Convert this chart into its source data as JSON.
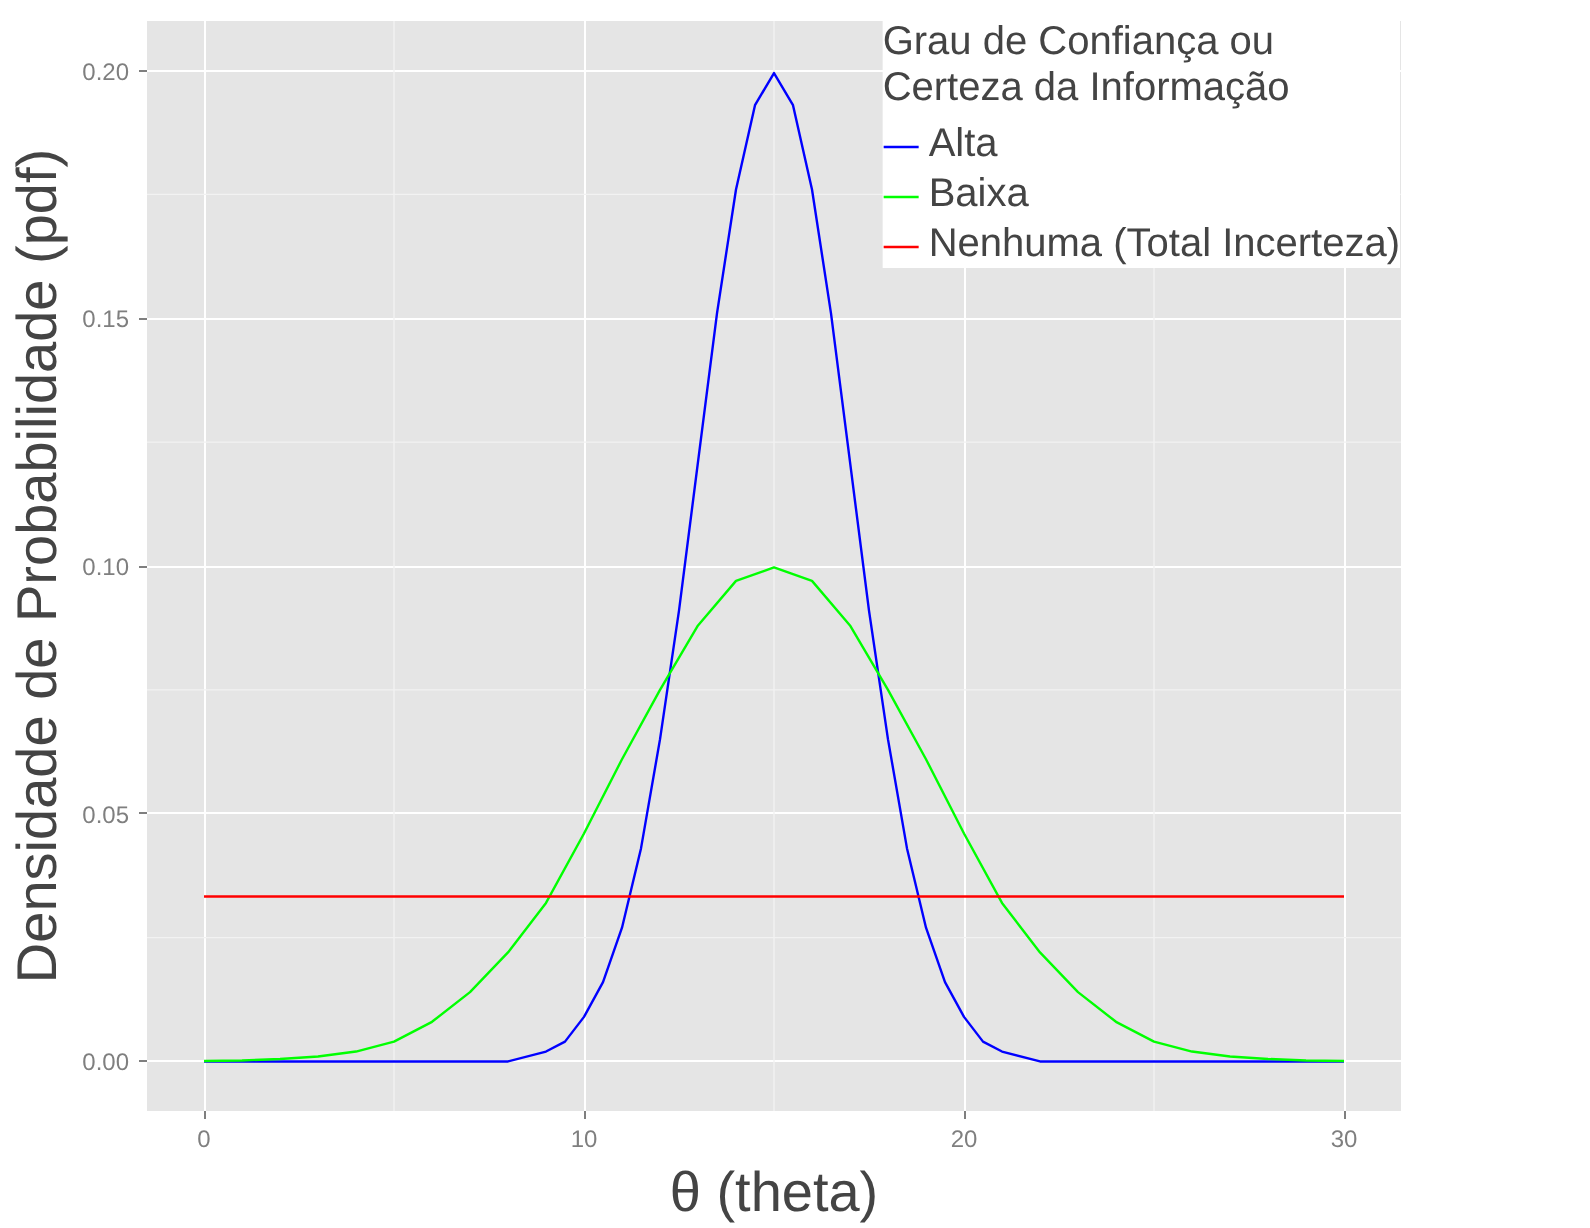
{
  "chart_data": {
    "type": "line",
    "xlabel": "θ (theta)",
    "ylabel": "Densidade de Probabilidade (pdf)",
    "legend_title": "Grau de Confiança ou\nCerteza da Informação",
    "legend": "top right",
    "grid": true,
    "xlim": [
      -1.5,
      31.5
    ],
    "ylim": [
      -0.01,
      0.21
    ],
    "xticks": [
      0,
      {
        "value": 5,
        "label": null
      },
      10,
      {
        "value": 15,
        "label": null
      },
      20,
      {
        "value": 25,
        "label": null
      },
      30
    ],
    "yticks": [
      "0.00",
      {
        "value": 0.025,
        "label": null
      },
      {
        "value": 0.05,
        "label": "0.05"
      },
      {
        "value": 0.075,
        "label": null
      },
      {
        "value": 0.1,
        "label": "0.10"
      },
      {
        "value": 0.125,
        "label": null
      },
      {
        "value": 0.15,
        "label": "0.15"
      },
      {
        "value": 0.175,
        "label": null
      },
      {
        "value": 0.2,
        "label": "0.20"
      }
    ],
    "series": [
      {
        "name": "Alta",
        "color": "#0000ff",
        "x": [
          0,
          1,
          2,
          3,
          4,
          5,
          6,
          7,
          8,
          9,
          9.5,
          10,
          10.5,
          11,
          11.5,
          12,
          12.5,
          13,
          13.5,
          14,
          14.5,
          15,
          15.5,
          16,
          16.5,
          17,
          17.5,
          18,
          18.5,
          19,
          19.5,
          20,
          20.5,
          21,
          22,
          23,
          24,
          25,
          26,
          27,
          28,
          29,
          30
        ],
        "values": [
          0,
          0,
          0,
          0,
          0,
          0,
          0,
          0,
          0,
          0.002,
          0.004,
          0.009,
          0.016,
          0.027,
          0.043,
          0.065,
          0.091,
          0.121,
          0.151,
          0.176,
          0.193,
          0.1995,
          0.193,
          0.176,
          0.151,
          0.121,
          0.091,
          0.065,
          0.043,
          0.027,
          0.016,
          0.009,
          0.004,
          0.002,
          0,
          0,
          0,
          0,
          0,
          0,
          0,
          0,
          0
        ]
      },
      {
        "name": "Baixa",
        "color": "#00ff00",
        "x": [
          0,
          1,
          2,
          3,
          4,
          5,
          6,
          7,
          8,
          9,
          10,
          11,
          12,
          13,
          14,
          15,
          16,
          17,
          18,
          19,
          20,
          21,
          22,
          23,
          24,
          25,
          26,
          27,
          28,
          29,
          30
        ],
        "values": [
          0.0001,
          0.0002,
          0.0005,
          0.001,
          0.002,
          0.004,
          0.008,
          0.014,
          0.022,
          0.032,
          0.046,
          0.061,
          0.075,
          0.088,
          0.097,
          0.0997,
          0.097,
          0.088,
          0.075,
          0.061,
          0.046,
          0.032,
          0.022,
          0.014,
          0.008,
          0.004,
          0.002,
          0.001,
          0.0005,
          0.0002,
          0.0001
        ]
      },
      {
        "name": "Nenhuma (Total Incerteza)",
        "color": "#ff0000",
        "x": [
          0,
          30
        ],
        "values": [
          0.0333,
          0.0333
        ]
      }
    ]
  }
}
